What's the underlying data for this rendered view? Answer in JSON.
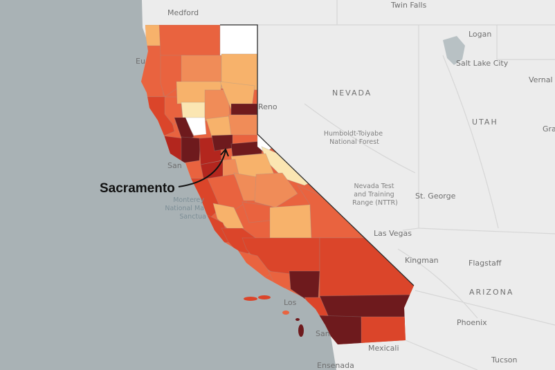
{
  "map": {
    "callout": {
      "label": "Sacramento"
    },
    "states": [
      {
        "key": "nevada",
        "label": "NEVADA"
      },
      {
        "key": "utah",
        "label": "UTAH"
      },
      {
        "key": "arizona",
        "label": "ARIZONA"
      }
    ],
    "cities": [
      {
        "key": "medford",
        "label": "Medford"
      },
      {
        "key": "twin-falls",
        "label": "Twin Falls"
      },
      {
        "key": "logan",
        "label": "Logan"
      },
      {
        "key": "salt-lake-city",
        "label": "Salt Lake City"
      },
      {
        "key": "vernal",
        "label": "Vernal"
      },
      {
        "key": "reno",
        "label": "Reno"
      },
      {
        "key": "st-george",
        "label": "St. George"
      },
      {
        "key": "las-vegas",
        "label": "Las Vegas"
      },
      {
        "key": "kingman",
        "label": "Kingman"
      },
      {
        "key": "flagstaff",
        "label": "Flagstaff"
      },
      {
        "key": "phoenix",
        "label": "Phoenix"
      },
      {
        "key": "tucson",
        "label": "Tucson"
      },
      {
        "key": "mexicali",
        "label": "Mexicali"
      },
      {
        "key": "ensenada",
        "label": "Ensenada"
      },
      {
        "key": "san-francisco-partial",
        "label": "San"
      },
      {
        "key": "los-angeles-partial",
        "label": "Los"
      },
      {
        "key": "san-diego-partial",
        "label": "San"
      },
      {
        "key": "eureka-partial",
        "label": "Eu"
      },
      {
        "key": "grand-junction-partial",
        "label": "Gra"
      }
    ],
    "features": [
      {
        "key": "humboldt-toiyabe",
        "lines": [
          "Humboldt-Toiyabe",
          "National Forest"
        ]
      },
      {
        "key": "nevada-test-range",
        "lines": [
          "Nevada Test",
          "and Training",
          "Range (NTTR)"
        ]
      },
      {
        "key": "monterey-bay",
        "lines": [
          "Monterey",
          "National Ma",
          "Sanctua"
        ]
      }
    ],
    "colors": {
      "ocean": "#a9b2b5",
      "land": "#ececec",
      "scale": [
        "#ffffff",
        "#fbe6b2",
        "#f7b26b",
        "#f08c58",
        "#e9633f",
        "#db452a",
        "#b3261e",
        "#6e1a1d"
      ]
    }
  }
}
